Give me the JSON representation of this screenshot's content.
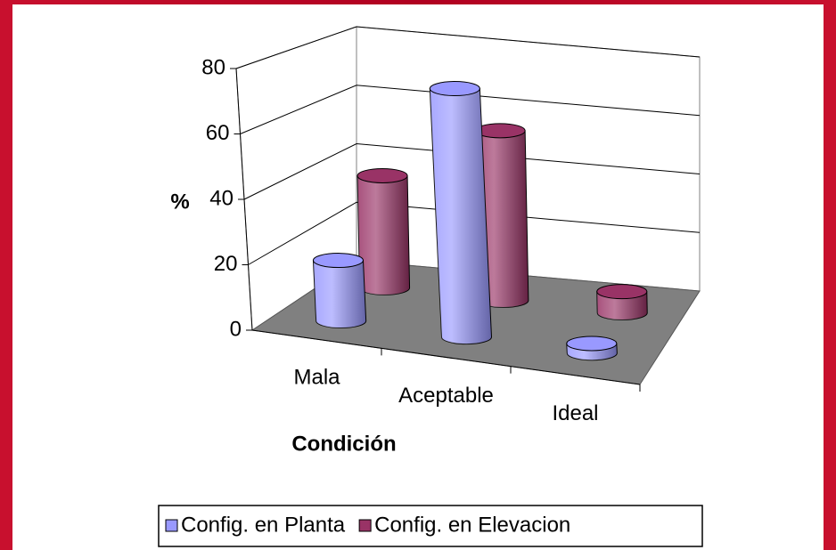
{
  "chart_data": {
    "type": "bar3d",
    "categories": [
      "Mala",
      "Aceptable",
      "Ideal"
    ],
    "series": [
      {
        "name": "Config. en Planta",
        "color": "#9999ff",
        "values": [
          19,
          78,
          3
        ]
      },
      {
        "name": "Config. en Elevacion",
        "color": "#993366",
        "values": [
          37,
          56,
          7
        ]
      }
    ],
    "ylabel": "%",
    "xlabel": "Condición",
    "ylim": [
      0,
      80
    ],
    "yticks": [
      0,
      20,
      40,
      60,
      80
    ],
    "grid": true,
    "legend": "bottom"
  }
}
